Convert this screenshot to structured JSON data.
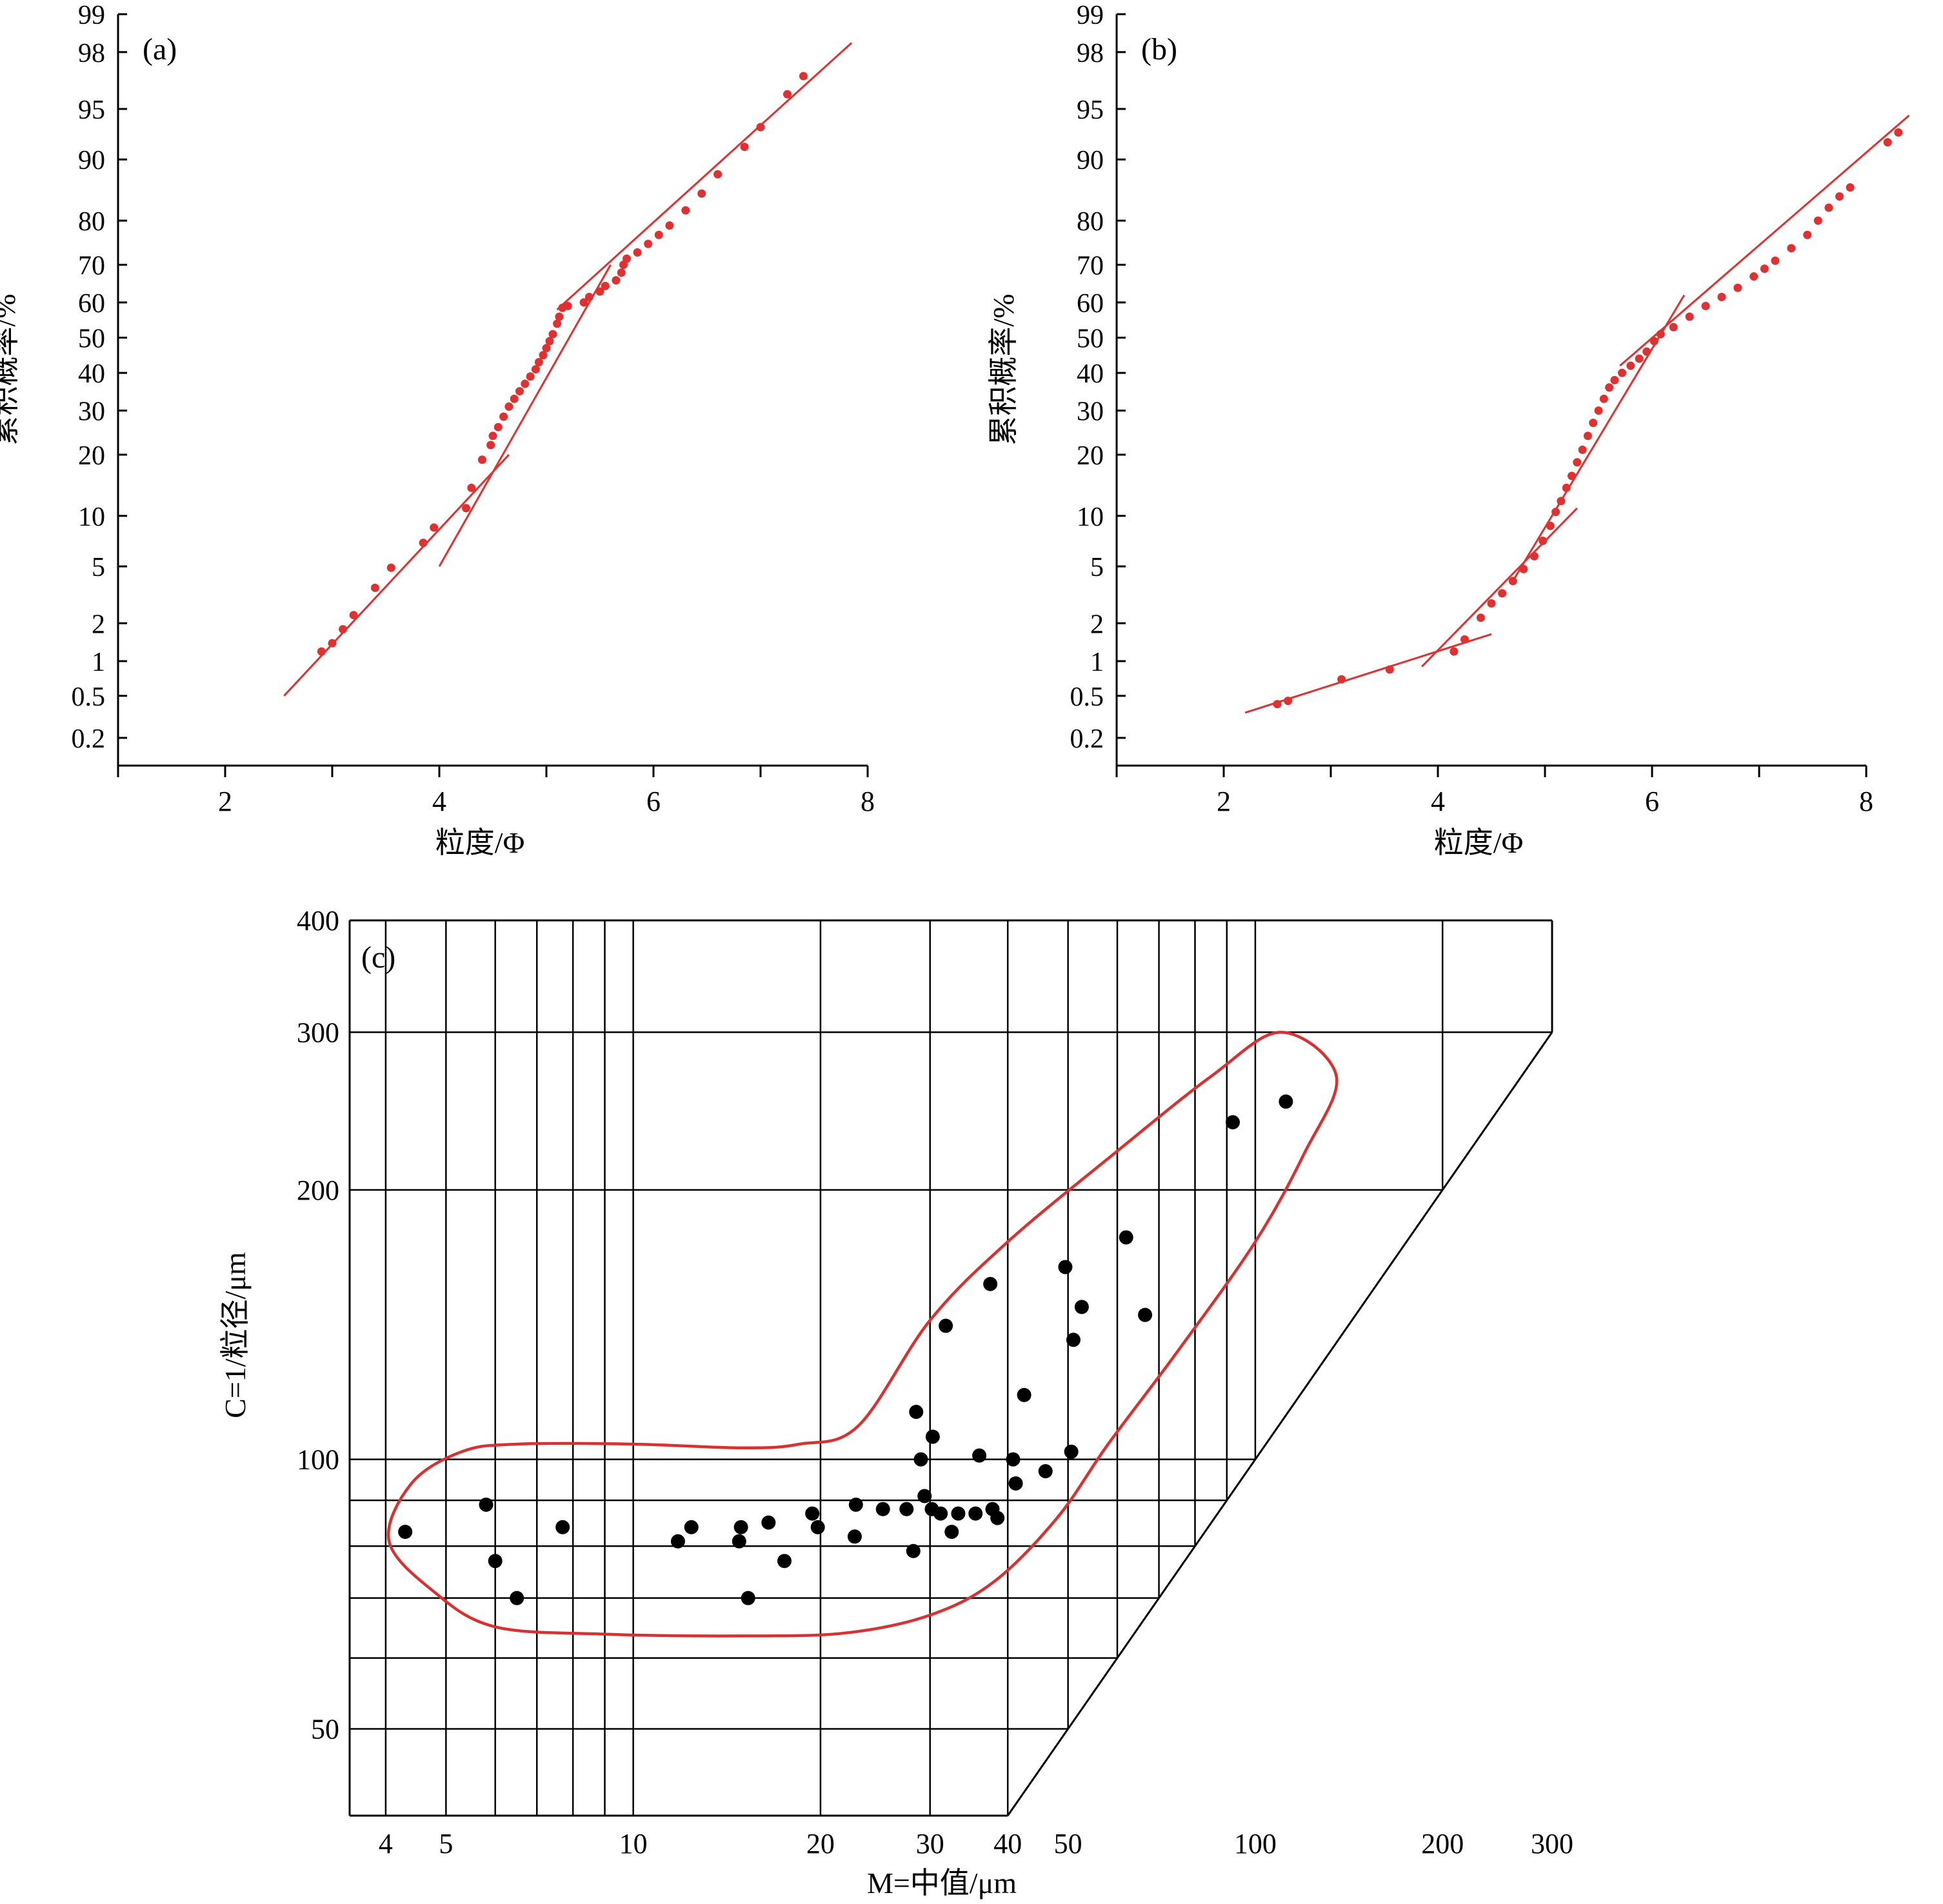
{
  "colors": {
    "probability_points": "#e03030",
    "probability_lines": "#e03030",
    "cm_envelope": "#d93030",
    "cm_points": "#000000",
    "axis": "#000000"
  },
  "chart_data": [
    {
      "type": "scatter",
      "panel_label": "(a)",
      "xlabel": "粒度/Φ",
      "ylabel": "累积概率/%",
      "x_ticks": [
        "2",
        "4",
        "6",
        "8"
      ],
      "y_ticks": [
        "0.2",
        "0.5",
        "1",
        "2",
        "5",
        "10",
        "20",
        "30",
        "40",
        "50",
        "60",
        "70",
        "80",
        "90",
        "95",
        "98",
        "99"
      ],
      "xlim": [
        1,
        8
      ],
      "y_scale": "probability",
      "grid": false,
      "points": [
        [
          2.9,
          1.2
        ],
        [
          3.0,
          1.4
        ],
        [
          3.1,
          1.8
        ],
        [
          3.2,
          2.3
        ],
        [
          3.4,
          3.6
        ],
        [
          3.55,
          4.9
        ],
        [
          3.85,
          7.0
        ],
        [
          3.95,
          8.6
        ],
        [
          4.25,
          11.0
        ],
        [
          4.3,
          14.0
        ],
        [
          4.4,
          19.0
        ],
        [
          4.48,
          22.0
        ],
        [
          4.5,
          24.0
        ],
        [
          4.55,
          26.0
        ],
        [
          4.6,
          28.5
        ],
        [
          4.65,
          31.0
        ],
        [
          4.7,
          33.0
        ],
        [
          4.75,
          35.0
        ],
        [
          4.8,
          37.0
        ],
        [
          4.85,
          39.0
        ],
        [
          4.9,
          41.0
        ],
        [
          4.93,
          43.0
        ],
        [
          4.97,
          45.0
        ],
        [
          5.0,
          47.0
        ],
        [
          5.03,
          49.0
        ],
        [
          5.06,
          51.0
        ],
        [
          5.1,
          54.0
        ],
        [
          5.12,
          56.0
        ],
        [
          5.15,
          58.5
        ],
        [
          5.2,
          59.0
        ],
        [
          5.35,
          60.0
        ],
        [
          5.4,
          61.5
        ],
        [
          5.5,
          63.0
        ],
        [
          5.55,
          64.5
        ],
        [
          5.65,
          66.0
        ],
        [
          5.7,
          68.0
        ],
        [
          5.72,
          70.0
        ],
        [
          5.75,
          71.5
        ],
        [
          5.85,
          73.0
        ],
        [
          5.95,
          75.0
        ],
        [
          6.05,
          77.0
        ],
        [
          6.15,
          79.0
        ],
        [
          6.3,
          82.0
        ],
        [
          6.45,
          85.0
        ],
        [
          6.6,
          88.0
        ],
        [
          6.85,
          91.5
        ],
        [
          7.0,
          93.5
        ],
        [
          7.25,
          96.0
        ],
        [
          7.4,
          97.0
        ]
      ],
      "fit_segments": [
        {
          "from": [
            2.55,
            0.5
          ],
          "to": [
            4.65,
            20.0
          ]
        },
        {
          "from": [
            4.0,
            5.0
          ],
          "to": [
            5.6,
            70.0
          ]
        },
        {
          "from": [
            5.1,
            58.0
          ],
          "to": [
            7.85,
            98.3
          ]
        }
      ]
    },
    {
      "type": "scatter",
      "panel_label": "(b)",
      "xlabel": "粒度/Φ",
      "ylabel": "累积概率/%",
      "x_ticks": [
        "2",
        "4",
        "6",
        "8"
      ],
      "y_ticks": [
        "0.2",
        "0.5",
        "1",
        "2",
        "5",
        "10",
        "20",
        "30",
        "40",
        "50",
        "60",
        "70",
        "80",
        "90",
        "95",
        "98",
        "99"
      ],
      "xlim": [
        1,
        8
      ],
      "y_scale": "probability",
      "grid": false,
      "points": [
        [
          2.5,
          0.42
        ],
        [
          2.6,
          0.45
        ],
        [
          3.1,
          0.7
        ],
        [
          3.55,
          0.85
        ],
        [
          4.15,
          1.2
        ],
        [
          4.25,
          1.5
        ],
        [
          4.4,
          2.2
        ],
        [
          4.5,
          2.8
        ],
        [
          4.6,
          3.3
        ],
        [
          4.7,
          4.0
        ],
        [
          4.8,
          4.8
        ],
        [
          4.9,
          5.8
        ],
        [
          4.98,
          7.2
        ],
        [
          5.05,
          8.8
        ],
        [
          5.1,
          10.5
        ],
        [
          5.15,
          12.0
        ],
        [
          5.2,
          14.0
        ],
        [
          5.25,
          16.0
        ],
        [
          5.3,
          18.5
        ],
        [
          5.35,
          21.0
        ],
        [
          5.4,
          24.0
        ],
        [
          5.45,
          27.0
        ],
        [
          5.5,
          30.0
        ],
        [
          5.55,
          33.0
        ],
        [
          5.6,
          36.0
        ],
        [
          5.65,
          38.0
        ],
        [
          5.72,
          40.0
        ],
        [
          5.8,
          42.0
        ],
        [
          5.88,
          44.0
        ],
        [
          5.95,
          46.0
        ],
        [
          6.02,
          49.0
        ],
        [
          6.08,
          51.0
        ],
        [
          6.2,
          53.0
        ],
        [
          6.35,
          56.0
        ],
        [
          6.5,
          59.0
        ],
        [
          6.65,
          61.5
        ],
        [
          6.8,
          64.0
        ],
        [
          6.95,
          67.0
        ],
        [
          7.05,
          69.0
        ],
        [
          7.15,
          71.0
        ],
        [
          7.3,
          74.0
        ],
        [
          7.45,
          77.0
        ],
        [
          7.55,
          80.0
        ],
        [
          7.65,
          82.5
        ],
        [
          7.75,
          84.5
        ],
        [
          7.85,
          86.0
        ],
        [
          8.2,
          92.0
        ],
        [
          8.3,
          93.0
        ]
      ],
      "fit_segments": [
        {
          "from": [
            2.2,
            0.35
          ],
          "to": [
            4.5,
            1.65
          ]
        },
        {
          "from": [
            3.85,
            0.9
          ],
          "to": [
            5.3,
            11.0
          ]
        },
        {
          "from": [
            4.7,
            4.0
          ],
          "to": [
            6.3,
            62.0
          ]
        },
        {
          "from": [
            5.7,
            42.0
          ],
          "to": [
            8.4,
            94.5
          ]
        }
      ]
    },
    {
      "type": "scatter",
      "panel_label": "(c)",
      "xlabel": "M=中值/μm",
      "ylabel": "C=1/粒径/μm",
      "x_scale": "log",
      "y_scale": "log",
      "xlim": [
        3.5,
        300
      ],
      "ylim": [
        40,
        400
      ],
      "x_ticks": [
        "4",
        "5",
        "10",
        "20",
        "30",
        "40",
        "50",
        "100",
        "200",
        "300"
      ],
      "y_ticks": [
        "50",
        "100",
        "200",
        "300",
        "400"
      ],
      "grid": true,
      "points": [
        [
          4.3,
          83
        ],
        [
          5.8,
          89
        ],
        [
          6.0,
          77
        ],
        [
          6.5,
          70
        ],
        [
          7.7,
          84
        ],
        [
          11.8,
          81
        ],
        [
          12.4,
          84
        ],
        [
          14.8,
          81
        ],
        [
          14.9,
          84
        ],
        [
          15.3,
          70
        ],
        [
          16.5,
          85
        ],
        [
          17.5,
          77
        ],
        [
          19.4,
          87
        ],
        [
          19.8,
          84
        ],
        [
          22.7,
          82
        ],
        [
          22.8,
          89
        ],
        [
          25.2,
          88
        ],
        [
          27.5,
          88
        ],
        [
          28.2,
          79
        ],
        [
          28.5,
          113
        ],
        [
          29.0,
          100
        ],
        [
          29.4,
          91
        ],
        [
          30.2,
          88
        ],
        [
          30.3,
          106
        ],
        [
          31.2,
          87
        ],
        [
          31.8,
          141
        ],
        [
          32.5,
          83
        ],
        [
          33.3,
          87
        ],
        [
          35.5,
          87
        ],
        [
          36.0,
          101
        ],
        [
          37.5,
          157
        ],
        [
          37.8,
          88
        ],
        [
          38.5,
          86
        ],
        [
          40.8,
          100
        ],
        [
          41.2,
          94
        ],
        [
          42.5,
          118
        ],
        [
          46.0,
          97
        ],
        [
          49.5,
          164
        ],
        [
          50.6,
          102
        ],
        [
          51.0,
          136
        ],
        [
          52.6,
          148
        ],
        [
          62.0,
          177
        ],
        [
          66.5,
          145
        ],
        [
          92.0,
          238
        ],
        [
          112.0,
          251
        ]
      ],
      "envelope": [
        [
          4.4,
          94
        ],
        [
          5.3,
          102
        ],
        [
          6.5,
          104
        ],
        [
          10.0,
          104
        ],
        [
          15.0,
          103
        ],
        [
          18.5,
          104
        ],
        [
          23.0,
          109
        ],
        [
          30.0,
          143
        ],
        [
          40.0,
          175
        ],
        [
          60.0,
          221
        ],
        [
          85.0,
          268
        ],
        [
          110.0,
          300
        ],
        [
          135.0,
          268
        ],
        [
          120.0,
          220
        ],
        [
          100.0,
          175
        ],
        [
          75.0,
          132
        ],
        [
          58.0,
          104
        ],
        [
          48.0,
          86
        ],
        [
          38.0,
          73
        ],
        [
          30.0,
          67
        ],
        [
          22.0,
          64
        ],
        [
          15.0,
          63.5
        ],
        [
          9.0,
          63.8
        ],
        [
          6.0,
          65
        ],
        [
          4.8,
          71
        ],
        [
          4.05,
          81
        ]
      ],
      "lower_boundary_line": [
        [
          40,
          40
        ],
        [
          300,
          300
        ]
      ]
    }
  ]
}
